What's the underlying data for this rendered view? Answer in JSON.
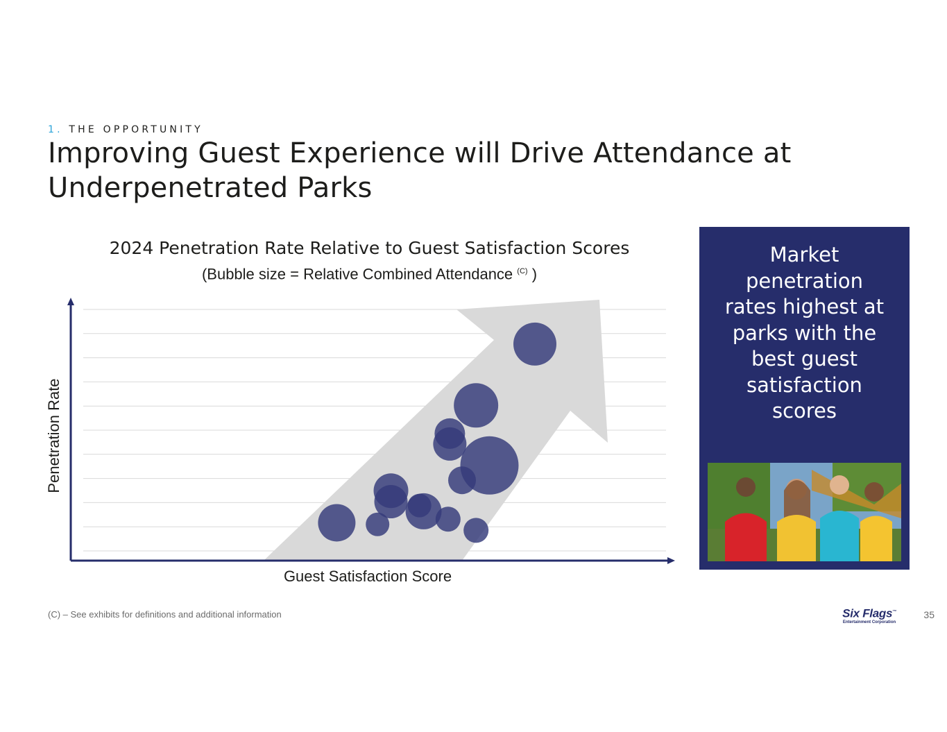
{
  "header": {
    "section_number": "1.",
    "section_name": "THE OPPORTUNITY",
    "title": "Improving Guest Experience will Drive Attendance at Underpenetrated Parks"
  },
  "colors": {
    "accent": "#2aa3d8",
    "navy": "#262d6b",
    "bubble": "#353b7a",
    "arrow": "#d9d9d9",
    "gridline": "#d9d9d9"
  },
  "chart_data": {
    "type": "scatter",
    "title": "2024 Penetration Rate Relative to Guest Satisfaction Scores",
    "subtitle_prefix": "(Bubble size = Relative Combined Attendance",
    "subtitle_sup": "(C)",
    "subtitle_suffix": ")",
    "xlabel": "Guest Satisfaction Score",
    "ylabel": "Penetration Rate",
    "xlim": [
      0,
      100
    ],
    "ylim": [
      0,
      100
    ],
    "grid": true,
    "gridline_count": 11,
    "axis_ticks": false,
    "annotation": "trend arrow pointing up-right",
    "points": [
      {
        "x": 43.5,
        "y": 14.5,
        "size": 27
      },
      {
        "x": 50.5,
        "y": 13.9,
        "size": 17
      },
      {
        "x": 52.8,
        "y": 26.8,
        "size": 25
      },
      {
        "x": 52.8,
        "y": 22.6,
        "size": 24
      },
      {
        "x": 57.7,
        "y": 21.1,
        "size": 17
      },
      {
        "x": 58.4,
        "y": 18.9,
        "size": 26
      },
      {
        "x": 62.6,
        "y": 15.9,
        "size": 18
      },
      {
        "x": 62.9,
        "y": 44.7,
        "size": 24
      },
      {
        "x": 62.9,
        "y": 48.7,
        "size": 22
      },
      {
        "x": 65.0,
        "y": 30.8,
        "size": 20
      },
      {
        "x": 67.4,
        "y": 59.5,
        "size": 32
      },
      {
        "x": 67.4,
        "y": 11.6,
        "size": 18
      },
      {
        "x": 69.7,
        "y": 36.5,
        "size": 42
      },
      {
        "x": 77.5,
        "y": 83.0,
        "size": 31
      }
    ]
  },
  "panel": {
    "text": "Market penetration rates highest at parks with the best guest satisfaction scores",
    "photo_alt": "Four smiling guests at a theme park"
  },
  "footer": {
    "footnote": "(C) – See exhibits for definitions and additional information",
    "logo_main": "Six Flags",
    "logo_tm": "™",
    "logo_sub": "Entertainment Corporation",
    "page_number": "35"
  }
}
